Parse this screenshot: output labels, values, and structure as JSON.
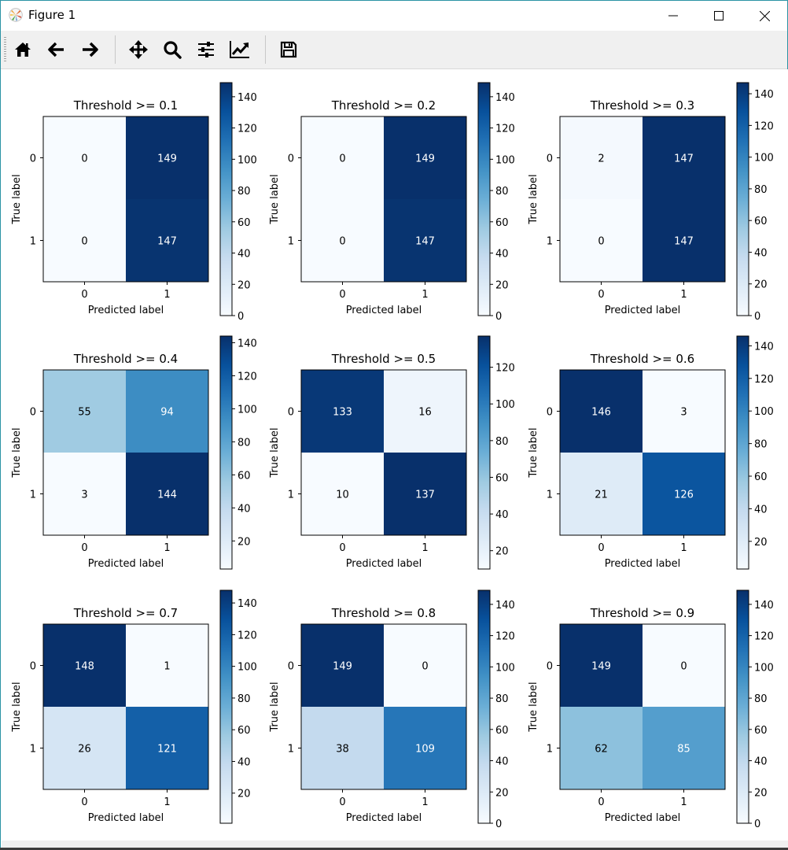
{
  "window": {
    "title": "Figure 1",
    "controls": [
      "minimize",
      "maximize",
      "close"
    ]
  },
  "toolbar": {
    "buttons": [
      {
        "name": "home",
        "icon": "home-icon",
        "tooltip": "Reset original view"
      },
      {
        "name": "back",
        "icon": "arrow-left-icon",
        "tooltip": "Back to previous view"
      },
      {
        "name": "forward",
        "icon": "arrow-right-icon",
        "tooltip": "Forward to next view"
      },
      {
        "name": "pan",
        "icon": "move-arrows-icon",
        "tooltip": "Pan axes"
      },
      {
        "name": "zoom",
        "icon": "magnifier-icon",
        "tooltip": "Zoom to rectangle"
      },
      {
        "name": "subplots",
        "icon": "sliders-icon",
        "tooltip": "Configure subplots"
      },
      {
        "name": "customize",
        "icon": "line-chart-icon",
        "tooltip": "Edit axis, curve and image parameters"
      },
      {
        "name": "save",
        "icon": "floppy-disk-icon",
        "tooltip": "Save the figure"
      }
    ]
  },
  "chart_data": [
    {
      "type": "heatmap",
      "title": "Threshold >= 0.1",
      "xlabel": "Predicted label",
      "ylabel": "True label",
      "x_ticks": [
        "0",
        "1"
      ],
      "y_ticks": [
        "0",
        "1"
      ],
      "matrix": [
        [
          0,
          149
        ],
        [
          0,
          147
        ]
      ],
      "colormap": "Blues",
      "colorbar_range": [
        0,
        149
      ],
      "colorbar_ticks": [
        0,
        20,
        40,
        60,
        80,
        100,
        120,
        140
      ]
    },
    {
      "type": "heatmap",
      "title": "Threshold >= 0.2",
      "xlabel": "Predicted label",
      "ylabel": "True label",
      "x_ticks": [
        "0",
        "1"
      ],
      "y_ticks": [
        "0",
        "1"
      ],
      "matrix": [
        [
          0,
          149
        ],
        [
          0,
          147
        ]
      ],
      "colormap": "Blues",
      "colorbar_range": [
        0,
        149
      ],
      "colorbar_ticks": [
        0,
        20,
        40,
        60,
        80,
        100,
        120,
        140
      ]
    },
    {
      "type": "heatmap",
      "title": "Threshold >= 0.3",
      "xlabel": "Predicted label",
      "ylabel": "True label",
      "x_ticks": [
        "0",
        "1"
      ],
      "y_ticks": [
        "0",
        "1"
      ],
      "matrix": [
        [
          2,
          147
        ],
        [
          0,
          147
        ]
      ],
      "colormap": "Blues",
      "colorbar_range": [
        0,
        147
      ],
      "colorbar_ticks": [
        0,
        20,
        40,
        60,
        80,
        100,
        120,
        140
      ]
    },
    {
      "type": "heatmap",
      "title": "Threshold >= 0.4",
      "xlabel": "Predicted label",
      "ylabel": "True label",
      "x_ticks": [
        "0",
        "1"
      ],
      "y_ticks": [
        "0",
        "1"
      ],
      "matrix": [
        [
          55,
          94
        ],
        [
          3,
          144
        ]
      ],
      "colormap": "Blues",
      "colorbar_range": [
        3,
        144
      ],
      "colorbar_ticks": [
        20,
        40,
        60,
        80,
        100,
        120,
        140
      ]
    },
    {
      "type": "heatmap",
      "title": "Threshold >= 0.5",
      "xlabel": "Predicted label",
      "ylabel": "True label",
      "x_ticks": [
        "0",
        "1"
      ],
      "y_ticks": [
        "0",
        "1"
      ],
      "matrix": [
        [
          133,
          16
        ],
        [
          10,
          137
        ]
      ],
      "colormap": "Blues",
      "colorbar_range": [
        10,
        137
      ],
      "colorbar_ticks": [
        20,
        40,
        60,
        80,
        100,
        120
      ]
    },
    {
      "type": "heatmap",
      "title": "Threshold >= 0.6",
      "xlabel": "Predicted label",
      "ylabel": "True label",
      "x_ticks": [
        "0",
        "1"
      ],
      "y_ticks": [
        "0",
        "1"
      ],
      "matrix": [
        [
          146,
          3
        ],
        [
          21,
          126
        ]
      ],
      "colormap": "Blues",
      "colorbar_range": [
        3,
        146
      ],
      "colorbar_ticks": [
        20,
        40,
        60,
        80,
        100,
        120,
        140
      ]
    },
    {
      "type": "heatmap",
      "title": "Threshold >= 0.7",
      "xlabel": "Predicted label",
      "ylabel": "True label",
      "x_ticks": [
        "0",
        "1"
      ],
      "y_ticks": [
        "0",
        "1"
      ],
      "matrix": [
        [
          148,
          1
        ],
        [
          26,
          121
        ]
      ],
      "colormap": "Blues",
      "colorbar_range": [
        1,
        148
      ],
      "colorbar_ticks": [
        20,
        40,
        60,
        80,
        100,
        120,
        140
      ]
    },
    {
      "type": "heatmap",
      "title": "Threshold >= 0.8",
      "xlabel": "Predicted label",
      "ylabel": "True label",
      "x_ticks": [
        "0",
        "1"
      ],
      "y_ticks": [
        "0",
        "1"
      ],
      "matrix": [
        [
          149,
          0
        ],
        [
          38,
          109
        ]
      ],
      "colormap": "Blues",
      "colorbar_range": [
        0,
        149
      ],
      "colorbar_ticks": [
        0,
        20,
        40,
        60,
        80,
        100,
        120,
        140
      ]
    },
    {
      "type": "heatmap",
      "title": "Threshold >= 0.9",
      "xlabel": "Predicted label",
      "ylabel": "True label",
      "x_ticks": [
        "0",
        "1"
      ],
      "y_ticks": [
        "0",
        "1"
      ],
      "matrix": [
        [
          149,
          0
        ],
        [
          62,
          85
        ]
      ],
      "colormap": "Blues",
      "colorbar_range": [
        0,
        149
      ],
      "colorbar_ticks": [
        0,
        20,
        40,
        60,
        80,
        100,
        120,
        140
      ]
    }
  ]
}
